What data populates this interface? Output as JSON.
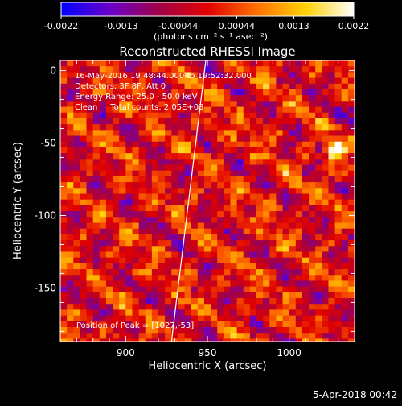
{
  "chart_data": {
    "type": "heatmap",
    "title": "Reconstructed RHESSI Image",
    "xlabel": "Heliocentric X (arcsec)",
    "ylabel": "Heliocentric Y (arcsec)",
    "xlim": [
      860,
      1040
    ],
    "ylim": [
      -187,
      7
    ],
    "xticks": [
      900,
      950,
      1000
    ],
    "yticks": [
      0,
      -50,
      -100,
      -150
    ],
    "colorbar": {
      "min": -0.0022,
      "max": 0.0022,
      "ticks": [
        "-0.0022",
        "-0.0013",
        "-0.00044",
        "0.00044",
        "0.0013",
        "0.0022"
      ],
      "label": "(photons cm⁻² s⁻¹ asec⁻²)",
      "colormap": [
        "#0000ff",
        "#6a00c8",
        "#a0004a",
        "#e00000",
        "#ff7000",
        "#ffd000",
        "#ffffff"
      ]
    },
    "annotations": [
      "16-May-2016 19:48:44.000 to 19:52:32.000",
      "Detectors: 3F 8F, Att 0",
      "Energy Range: 25.0 - 50.0 keV",
      "Clean     Total counts: 2.05E+03"
    ],
    "peak_label": "Position of Peak = [1027,-53]",
    "peak": [
      1027,
      -53
    ],
    "limb_line": [
      [
        949,
        7
      ],
      [
        928,
        -187
      ]
    ],
    "grid": false
  },
  "timestamp": "5-Apr-2018 00:42"
}
